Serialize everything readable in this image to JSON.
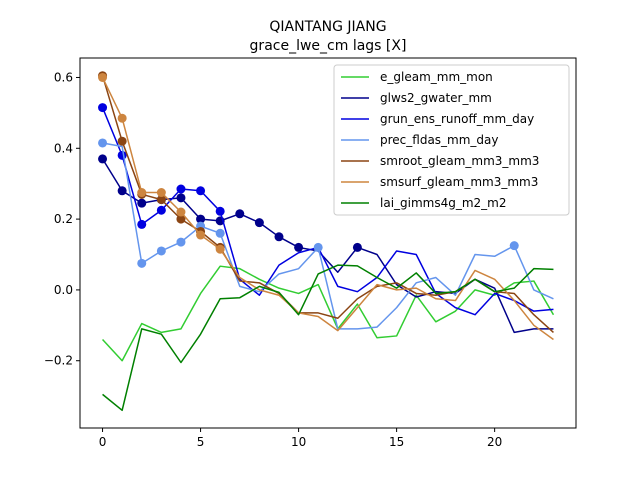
{
  "chart_data": {
    "type": "line",
    "title": "QIANTANG JIANG",
    "subtitle": "grace_lwe_cm lags [X]",
    "xlabel": "",
    "ylabel": "",
    "xlim": [
      -1.15,
      24.15
    ],
    "ylim": [
      -0.39,
      0.655
    ],
    "x": [
      0,
      1,
      2,
      3,
      4,
      5,
      6,
      7,
      8,
      9,
      10,
      11,
      12,
      13,
      14,
      15,
      16,
      17,
      18,
      19,
      20,
      21,
      22,
      23
    ],
    "x_ticks": [
      0,
      5,
      10,
      15,
      20
    ],
    "x_tick_labels": [
      "0",
      "5",
      "10",
      "15",
      "20"
    ],
    "y_ticks": [
      -0.2,
      0.0,
      0.2,
      0.4,
      0.6
    ],
    "y_tick_labels": [
      "−0.2",
      "0.0",
      "0.2",
      "0.4",
      "0.6"
    ],
    "grid": false,
    "legend_position": "top-right",
    "series": [
      {
        "name": "e_gleam_mm_mon",
        "color": "#32cd32",
        "values": [
          -0.14,
          -0.2,
          -0.095,
          -0.12,
          -0.11,
          -0.01,
          0.067,
          0.06,
          0.03,
          0.005,
          -0.01,
          0.015,
          -0.11,
          -0.04,
          -0.135,
          -0.13,
          -0.015,
          -0.09,
          -0.06,
          0.0,
          -0.015,
          0.02,
          0.025,
          -0.07
        ],
        "markers": []
      },
      {
        "name": "glws2_gwater_mm",
        "color": "#00008b",
        "values": [
          0.37,
          0.28,
          0.245,
          0.255,
          0.26,
          0.2,
          0.195,
          0.215,
          0.19,
          0.15,
          0.12,
          0.11,
          0.05,
          0.12,
          0.1,
          0.015,
          -0.02,
          -0.005,
          -0.01,
          0.03,
          0.005,
          -0.12,
          -0.11,
          -0.11
        ],
        "markers": [
          0,
          1,
          2,
          3,
          4,
          5,
          6,
          7,
          8,
          9,
          10,
          13
        ]
      },
      {
        "name": "grun_ens_runoff_mm_day",
        "color": "#0000e0",
        "values": [
          0.515,
          0.38,
          0.185,
          0.225,
          0.285,
          0.28,
          0.222,
          0.03,
          -0.015,
          0.07,
          0.105,
          0.12,
          0.01,
          -0.005,
          0.035,
          0.11,
          0.1,
          -0.01,
          -0.05,
          -0.07,
          -0.01,
          -0.03,
          -0.06,
          -0.055
        ],
        "markers": [
          0,
          1,
          2,
          3,
          4,
          5,
          6
        ]
      },
      {
        "name": "prec_fldas_mm_day",
        "color": "#6495ed",
        "values": [
          0.415,
          0.405,
          0.075,
          0.11,
          0.135,
          0.18,
          0.16,
          0.01,
          -0.005,
          0.045,
          0.06,
          0.12,
          -0.11,
          -0.11,
          -0.105,
          -0.05,
          0.02,
          0.035,
          -0.015,
          0.1,
          0.095,
          0.125,
          0.0,
          -0.025
        ],
        "markers": [
          0,
          2,
          3,
          4,
          5,
          6,
          11,
          21
        ]
      },
      {
        "name": "smroot_gleam_mm3_mm3",
        "color": "#8b4513",
        "values": [
          0.605,
          0.42,
          0.27,
          0.255,
          0.2,
          0.165,
          0.12,
          0.025,
          0.02,
          -0.01,
          -0.065,
          -0.065,
          -0.08,
          -0.025,
          0.01,
          0.02,
          -0.01,
          -0.015,
          -0.005,
          0.03,
          -0.005,
          -0.01,
          -0.07,
          -0.12
        ],
        "markers": [
          0,
          1,
          2,
          3,
          4,
          5,
          6
        ]
      },
      {
        "name": "smsurf_gleam_mm3_mm3",
        "color": "#cd853f",
        "values": [
          0.6,
          0.485,
          0.275,
          0.275,
          0.22,
          0.155,
          0.115,
          0.035,
          0.0,
          -0.015,
          -0.065,
          -0.075,
          -0.115,
          -0.05,
          0.015,
          0.0,
          0.005,
          -0.025,
          -0.03,
          0.055,
          0.03,
          -0.03,
          -0.1,
          -0.14
        ],
        "markers": [
          0,
          1,
          2,
          3,
          4,
          5,
          6
        ]
      },
      {
        "name": "lai_gimms4g_m2_m2",
        "color": "#008000",
        "values": [
          -0.295,
          -0.34,
          -0.11,
          -0.125,
          -0.205,
          -0.125,
          -0.025,
          -0.022,
          0.01,
          -0.007,
          -0.07,
          0.045,
          0.07,
          0.068,
          0.035,
          0.005,
          0.048,
          -0.01,
          -0.005,
          0.03,
          -0.005,
          0.005,
          0.06,
          0.058
        ],
        "markers": []
      }
    ]
  }
}
